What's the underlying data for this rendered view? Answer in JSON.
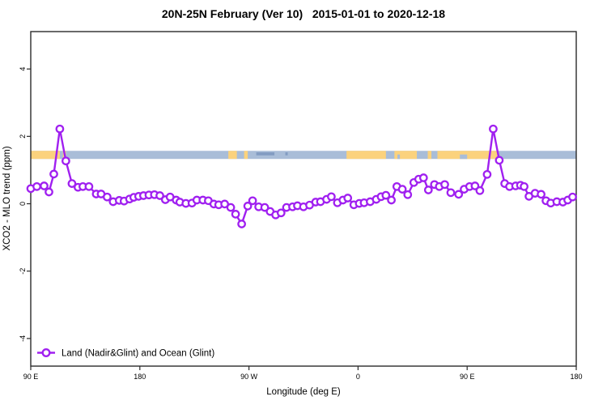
{
  "title": "20N-25N February (Ver 10)   2015-01-01 to 2020-12-18",
  "chart_data": {
    "type": "line",
    "title": "20N-25N February (Ver 10)   2015-01-01 to 2020-12-18",
    "xlabel": "Longitude (deg E)",
    "ylabel": "XCO2 - MLO trend (ppm)",
    "xlim": [
      90,
      540
    ],
    "ylim": [
      -4.82,
      5.11
    ],
    "grid": false,
    "x_ticks": [
      {
        "value": 90,
        "label": "90 E"
      },
      {
        "value": 180,
        "label": "180"
      },
      {
        "value": 270,
        "label": "90 W"
      },
      {
        "value": 360,
        "label": "0"
      },
      {
        "value": 450,
        "label": "90 E"
      },
      {
        "value": 540,
        "label": "180"
      }
    ],
    "y_ticks": [
      {
        "value": -4,
        "label": "-4"
      },
      {
        "value": -2,
        "label": "-2"
      },
      {
        "value": 0,
        "label": "0"
      },
      {
        "value": 2,
        "label": "2"
      },
      {
        "value": 4,
        "label": "4"
      }
    ],
    "legend": {
      "label": "Land (Nadir&Glint) and Ocean (Glint)",
      "position": "bottom-left"
    },
    "colors": {
      "series": "#A020F0",
      "marker_fill": "#FFFFFF",
      "ocean": "#A9BDD8",
      "land": "#FBD27D",
      "coast": "#7D97BE",
      "axis": "#2B2B2B",
      "text": "#000000"
    },
    "map_band": {
      "y_range": [
        1.33,
        1.57
      ],
      "land_segments": [
        [
          90,
          114
        ],
        [
          116.5,
          119
        ],
        [
          253,
          260
        ],
        [
          266,
          269
        ],
        [
          350.5,
          383
        ],
        [
          390,
          408.5
        ],
        [
          417.5,
          420.5
        ],
        [
          425.5,
          475
        ]
      ],
      "ocean_specks": [
        [
          392.5,
          394.5
        ],
        [
          444,
          450
        ]
      ],
      "coast_marks": [
        [
          276,
          291
        ],
        [
          300,
          302
        ]
      ]
    },
    "series": [
      {
        "name": "Land (Nadir&Glint) and Ocean (Glint)",
        "points": [
          [
            90,
            0.45
          ],
          [
            95,
            0.51
          ],
          [
            101,
            0.53
          ],
          [
            105,
            0.35
          ],
          [
            109,
            0.88
          ],
          [
            114,
            2.22
          ],
          [
            119,
            1.27
          ],
          [
            124,
            0.6
          ],
          [
            129,
            0.49
          ],
          [
            133,
            0.51
          ],
          [
            138,
            0.51
          ],
          [
            144,
            0.29
          ],
          [
            148,
            0.29
          ],
          [
            153,
            0.2
          ],
          [
            158,
            0.06
          ],
          [
            163,
            0.1
          ],
          [
            167,
            0.08
          ],
          [
            171.5,
            0.14
          ],
          [
            175,
            0.19
          ],
          [
            179,
            0.22
          ],
          [
            183,
            0.24
          ],
          [
            187.5,
            0.26
          ],
          [
            192,
            0.27
          ],
          [
            196.5,
            0.24
          ],
          [
            201,
            0.12
          ],
          [
            205,
            0.2
          ],
          [
            210,
            0.11
          ],
          [
            213,
            0.05
          ],
          [
            218,
            0.01
          ],
          [
            223,
            0.02
          ],
          [
            227,
            0.11
          ],
          [
            232,
            0.11
          ],
          [
            236.5,
            0.09
          ],
          [
            241,
            -0.01
          ],
          [
            245,
            -0.03
          ],
          [
            250,
            -0.01
          ],
          [
            255,
            -0.11
          ],
          [
            259,
            -0.31
          ],
          [
            264,
            -0.6
          ],
          [
            269,
            -0.07
          ],
          [
            273,
            0.09
          ],
          [
            278,
            -0.09
          ],
          [
            283,
            -0.11
          ],
          [
            287.5,
            -0.23
          ],
          [
            292,
            -0.33
          ],
          [
            296.5,
            -0.27
          ],
          [
            301,
            -0.11
          ],
          [
            306,
            -0.09
          ],
          [
            310,
            -0.06
          ],
          [
            315,
            -0.09
          ],
          [
            320,
            -0.04
          ],
          [
            325,
            0.05
          ],
          [
            329,
            0.06
          ],
          [
            334,
            0.13
          ],
          [
            338,
            0.21
          ],
          [
            343,
            0.03
          ],
          [
            347.5,
            0.11
          ],
          [
            351.5,
            0.17
          ],
          [
            356.5,
            -0.03
          ],
          [
            361,
            0.01
          ],
          [
            365,
            0.03
          ],
          [
            370,
            0.06
          ],
          [
            375,
            0.13
          ],
          [
            379,
            0.21
          ],
          [
            383,
            0.25
          ],
          [
            387.5,
            0.11
          ],
          [
            392,
            0.51
          ],
          [
            396.5,
            0.43
          ],
          [
            401,
            0.27
          ],
          [
            406,
            0.63
          ],
          [
            410,
            0.73
          ],
          [
            414,
            0.77
          ],
          [
            418,
            0.41
          ],
          [
            423,
            0.57
          ],
          [
            427,
            0.51
          ],
          [
            431.5,
            0.57
          ],
          [
            436.5,
            0.33
          ],
          [
            443,
            0.28
          ],
          [
            447.5,
            0.43
          ],
          [
            452,
            0.51
          ],
          [
            456.5,
            0.53
          ],
          [
            460.5,
            0.39
          ],
          [
            466.5,
            0.87
          ],
          [
            471.5,
            2.22
          ],
          [
            476.5,
            1.29
          ],
          [
            481,
            0.6
          ],
          [
            485,
            0.51
          ],
          [
            490,
            0.53
          ],
          [
            494,
            0.55
          ],
          [
            497,
            0.51
          ],
          [
            501,
            0.22
          ],
          [
            506,
            0.31
          ],
          [
            511,
            0.28
          ],
          [
            515,
            0.09
          ],
          [
            519,
            0.02
          ],
          [
            524,
            0.06
          ],
          [
            529,
            0.05
          ],
          [
            533,
            0.11
          ],
          [
            537,
            0.2
          ]
        ]
      }
    ]
  }
}
